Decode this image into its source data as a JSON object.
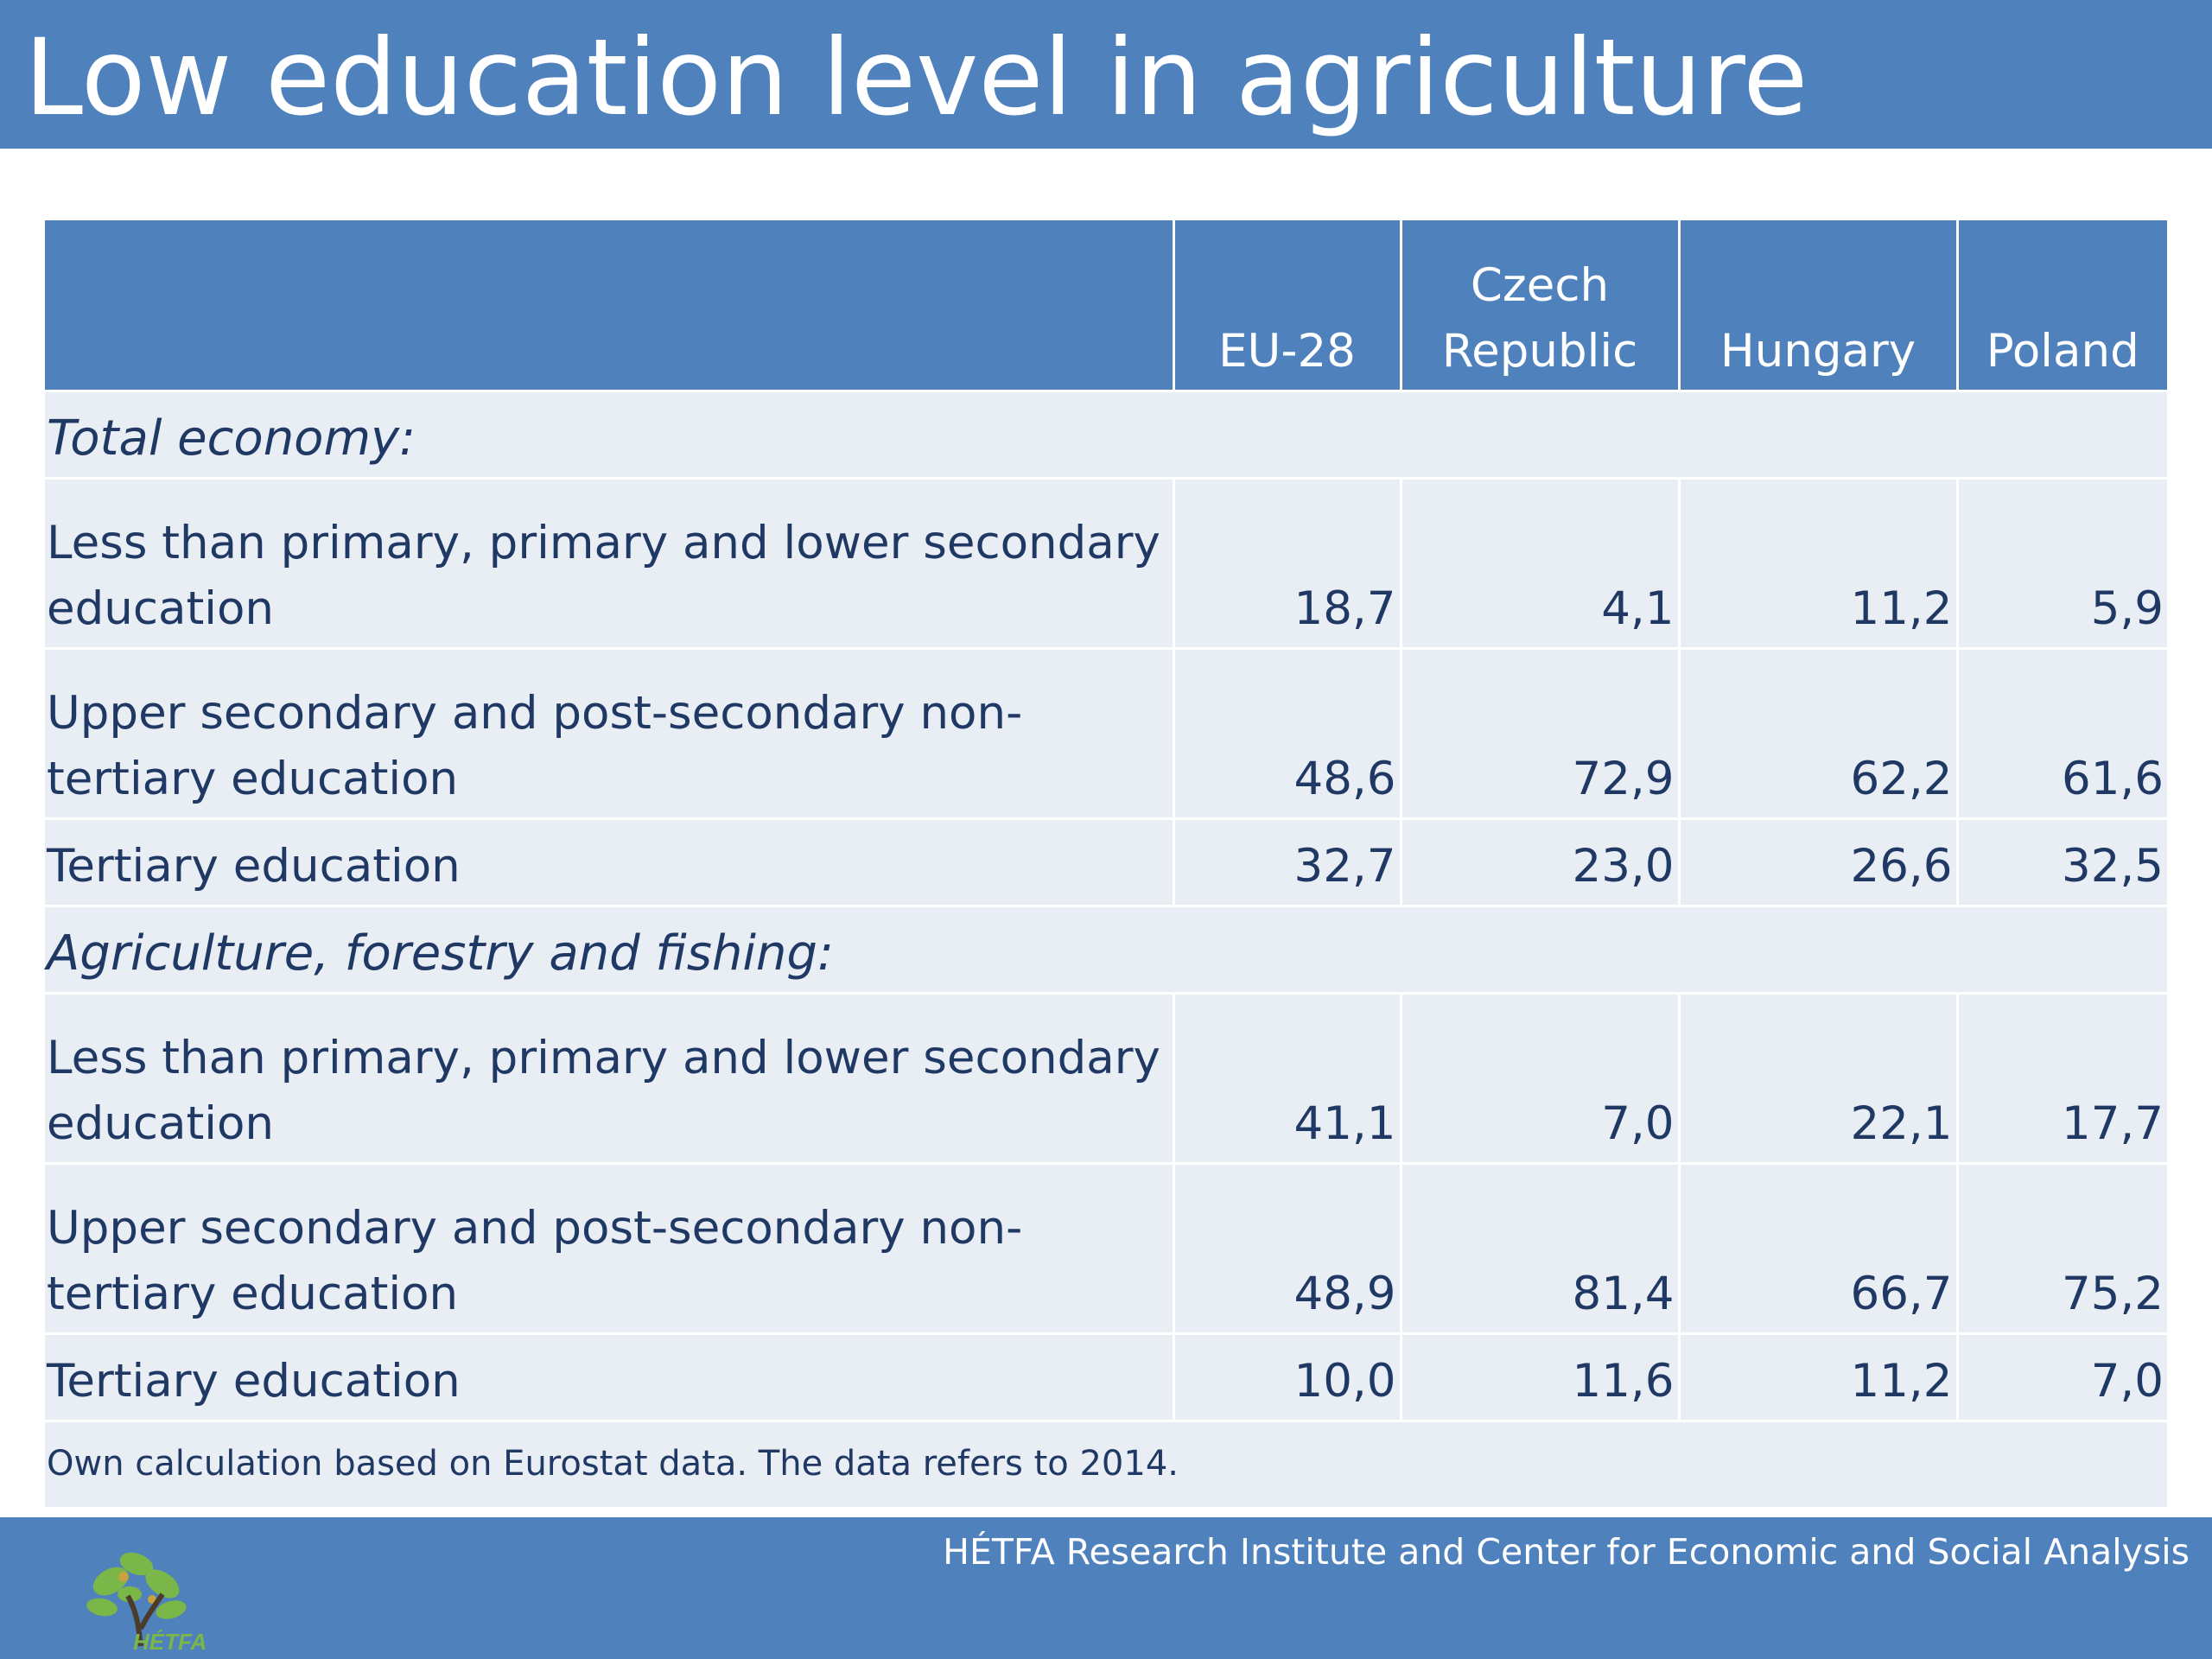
{
  "title": "Low education level in agriculture",
  "table": {
    "columns": [
      "EU-28",
      "Czech Republic",
      "Hungary",
      "Poland"
    ],
    "sections": [
      {
        "label": "Total economy:",
        "rows": [
          {
            "label": "Less than primary, primary and lower secondary education",
            "values": [
              "18,7",
              "4,1",
              "11,2",
              "5,9"
            ]
          },
          {
            "label": "Upper secondary and post-secondary non-tertiary education",
            "values": [
              "48,6",
              "72,9",
              "62,2",
              "61,6"
            ]
          },
          {
            "label": "Tertiary education",
            "values": [
              "32,7",
              "23,0",
              "26,6",
              "32,5"
            ]
          }
        ]
      },
      {
        "label": "Agriculture, forestry and fishing:",
        "rows": [
          {
            "label": "Less than primary, primary and lower secondary education",
            "values": [
              "41,1",
              "7,0",
              "22,1",
              "17,7"
            ]
          },
          {
            "label": "Upper secondary and post-secondary non-tertiary education",
            "values": [
              "48,9",
              "81,4",
              "66,7",
              "75,2"
            ]
          },
          {
            "label": "Tertiary education",
            "values": [
              "10,0",
              "11,6",
              "11,2",
              "7,0"
            ]
          }
        ]
      }
    ],
    "note": "Own calculation based on Eurostat data. The data refers to 2014."
  },
  "footer": {
    "text": "HÉTFA Research Institute and Center for Economic and Social Analysis",
    "logo_text": "HÉTFA",
    "logo_icon": "tree-logo-icon"
  },
  "colors": {
    "accent": "#4f81bd",
    "row_bg": "#e9edf4",
    "text": "#1f3864"
  }
}
